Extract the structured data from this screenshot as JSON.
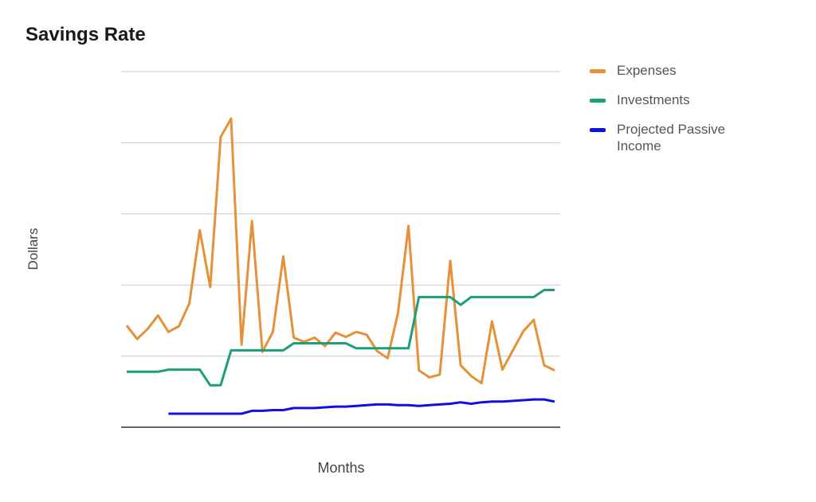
{
  "chart_data": {
    "type": "line",
    "title": "Savings Rate",
    "xlabel": "Months",
    "ylabel": "Dollars",
    "ylim": [
      0,
      5
    ],
    "grid": true,
    "legend_position": "right",
    "x": [
      1,
      2,
      3,
      4,
      5,
      6,
      7,
      8,
      9,
      10,
      11,
      12,
      13,
      14,
      15,
      16,
      17,
      18,
      19,
      20,
      21,
      22,
      23,
      24,
      25,
      26,
      27,
      28,
      29,
      30,
      31,
      32,
      33,
      34,
      35,
      36,
      37,
      38,
      39,
      40,
      41,
      42
    ],
    "series": [
      {
        "name": "Expenses",
        "color": "#e69138",
        "values": [
          1.43,
          1.24,
          1.38,
          1.57,
          1.34,
          1.42,
          1.74,
          2.77,
          1.97,
          4.08,
          4.34,
          1.16,
          2.9,
          1.06,
          1.34,
          2.4,
          1.26,
          1.2,
          1.26,
          1.14,
          1.33,
          1.27,
          1.34,
          1.3,
          1.07,
          0.97,
          1.61,
          2.83,
          0.8,
          0.7,
          0.74,
          2.34,
          0.87,
          0.72,
          0.62,
          1.49,
          0.81,
          1.08,
          1.35,
          1.51,
          0.87,
          0.8
        ]
      },
      {
        "name": "Investments",
        "color": "#1a9f7a",
        "values": [
          0.78,
          0.78,
          0.78,
          0.78,
          0.81,
          0.81,
          0.81,
          0.81,
          0.59,
          0.59,
          1.08,
          1.08,
          1.08,
          1.08,
          1.08,
          1.08,
          1.18,
          1.18,
          1.18,
          1.18,
          1.18,
          1.18,
          1.11,
          1.11,
          1.11,
          1.11,
          1.11,
          1.11,
          1.83,
          1.83,
          1.83,
          1.83,
          1.72,
          1.83,
          1.83,
          1.83,
          1.83,
          1.83,
          1.83,
          1.83,
          1.93,
          1.93
        ]
      },
      {
        "name": "Projected Passive Income",
        "color": "#1010e0",
        "values": [
          null,
          null,
          null,
          null,
          0.19,
          0.19,
          0.19,
          0.19,
          0.19,
          0.19,
          0.19,
          0.19,
          0.23,
          0.23,
          0.24,
          0.24,
          0.27,
          0.27,
          0.27,
          0.28,
          0.29,
          0.29,
          0.3,
          0.31,
          0.32,
          0.32,
          0.31,
          0.31,
          0.3,
          0.31,
          0.32,
          0.33,
          0.35,
          0.33,
          0.35,
          0.36,
          0.36,
          0.37,
          0.38,
          0.39,
          0.39,
          0.36
        ]
      }
    ]
  }
}
